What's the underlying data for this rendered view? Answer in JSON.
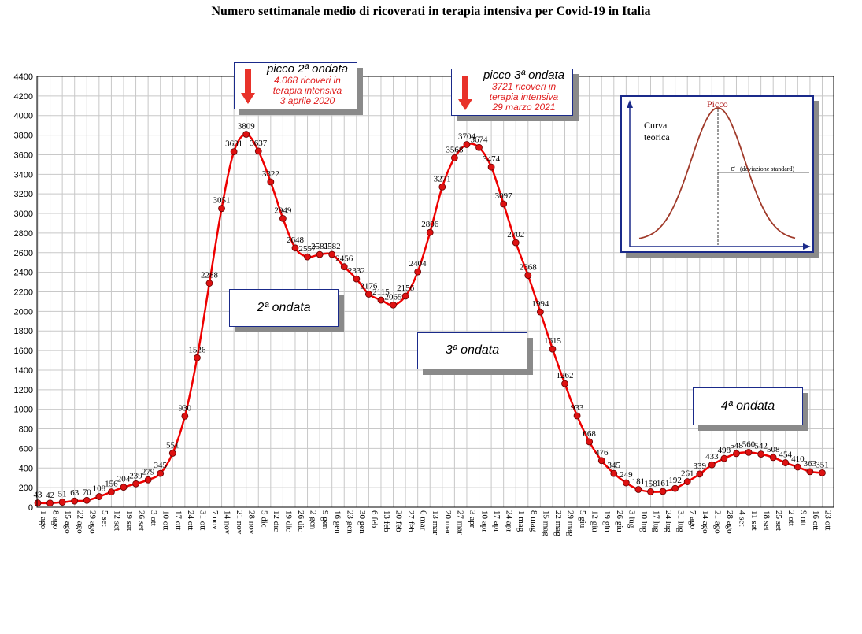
{
  "chart_data": {
    "type": "line",
    "title": "Numero settimanale medio di ricoverati in terapia intensiva per Covid-19 in Italia",
    "xlabel": "",
    "ylabel": "",
    "ylim": [
      0,
      4400
    ],
    "yticks": [
      0,
      200,
      400,
      600,
      800,
      1000,
      1200,
      1400,
      1600,
      1800,
      2000,
      2200,
      2400,
      2600,
      2800,
      3000,
      3200,
      3400,
      3600,
      3800,
      4000,
      4200,
      4400
    ],
    "grid": true,
    "categories": [
      "1 ago",
      "8 ago",
      "15 ago",
      "22 ago",
      "29 ago",
      "5 set",
      "12 set",
      "19 set",
      "26 set",
      "3 ott",
      "10 ott",
      "17 ott",
      "24 ott",
      "31 ott",
      "7 nov",
      "14 nov",
      "21 nov",
      "28 nov",
      "5 dic",
      "12 dic",
      "19 dic",
      "26 dic",
      "2 gen",
      "9 gen",
      "16 gen",
      "23 gen",
      "30 gen",
      "6 feb",
      "13 feb",
      "20 feb",
      "27 feb",
      "6 mar",
      "13 mar",
      "20 mar",
      "27 mar",
      "3 apr",
      "10 apr",
      "17 apr",
      "24 apr",
      "1 mag",
      "8 mag",
      "15 mag",
      "22 mag",
      "29 mag",
      "5 giu",
      "12 giu",
      "19 giu",
      "26 giu",
      "3 lug",
      "10 lug",
      "17 lug",
      "24 lug",
      "31 lug",
      "7 ago",
      "14 ago",
      "21 ago",
      "28 ago",
      "4 set",
      "11 set",
      "18 set",
      "25 set",
      "2 ott",
      "9 ott",
      "16 ott",
      "23 ott"
    ],
    "series": [
      {
        "values": [
          43,
          42,
          51,
          63,
          70,
          108,
          156,
          204,
          239,
          279,
          345,
          551,
          930,
          1526,
          2288,
          3051,
          3631,
          3809,
          3637,
          3322,
          2949,
          2648,
          2557,
          2581,
          2582,
          2456,
          2332,
          2176,
          2115,
          2065,
          2156,
          2404,
          2806,
          3271,
          3568,
          3704,
          3674,
          3474,
          3097,
          2702,
          2368,
          1994,
          1615,
          1262,
          933,
          668,
          476,
          345,
          249,
          181,
          158,
          161,
          192,
          261,
          339,
          433,
          498,
          548,
          560,
          542,
          508,
          454,
          410,
          363,
          351
        ],
        "labels": [
          "43",
          "42",
          "51",
          "63",
          "70",
          "108",
          "156",
          "204",
          "239",
          "279",
          "345",
          "551",
          "930",
          "1526",
          "2288",
          "3051",
          "3631",
          "3809",
          "3637",
          "3322",
          "2949",
          "2648",
          "2557",
          "2581",
          "2582",
          "2456",
          "2332",
          "2176",
          "2115",
          "2065",
          "2156",
          "2404",
          "2806",
          "3271",
          "3568",
          "3704",
          "3674",
          "3474",
          "3097",
          "2702",
          "2368",
          "1994",
          "1615",
          "1262",
          "933",
          "668",
          "476",
          "345",
          "249",
          "181",
          "158",
          "161",
          "192",
          "261",
          "339",
          "433",
          "498",
          "548",
          "560",
          "542",
          "508",
          "454",
          "410",
          "363",
          "351"
        ]
      }
    ],
    "line_color": "#ee0000",
    "marker_color": "#dd1111",
    "grid_color": "#c8c8c8"
  },
  "annotations": {
    "peak2": {
      "title": "picco 2ª ondata",
      "line1": "4.068 ricoveri in",
      "line2": "terapia intensiva",
      "line3": "3 aprile 2020"
    },
    "peak3": {
      "title": "picco 3ª ondata",
      "line1": "3721 ricoveri in",
      "line2": "terapia intensiva",
      "line3": "29 marzo 2021"
    },
    "wave2": "2ª ondata",
    "wave3": "3ª ondata",
    "wave4": "4ª ondata",
    "arrow_color": "#e8322a"
  },
  "inset": {
    "peak_label": "Picco",
    "curve_label_1": "Curva",
    "curve_label_2": "teorica",
    "sigma_label": "σ",
    "sigma_desc": "(deviazione standard)",
    "curve_color": "#a03a2a",
    "peak_color": "#b02020"
  }
}
